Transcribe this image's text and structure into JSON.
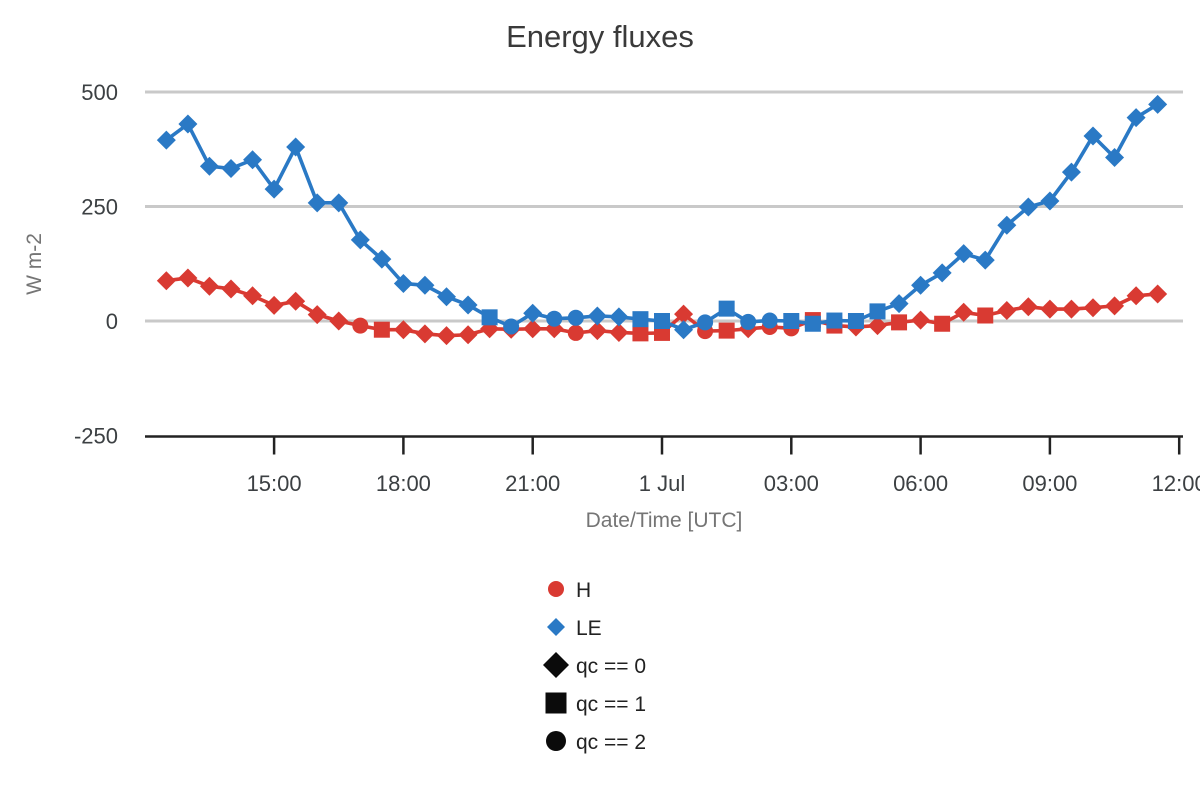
{
  "title": "Energy fluxes",
  "colors": {
    "h_series": "#d93a32",
    "le_series": "#2a79c5",
    "qc_legend": "#0b0b0b",
    "gridline": "#c9c9c9",
    "axis_line": "#222222",
    "tick_label": "#3c4043",
    "axis_title": "#757575",
    "title_text": "#3a3a3a",
    "legend_text": "#212121"
  },
  "y_axis": {
    "label": "W m-2",
    "ticks": [
      {
        "value": 500,
        "label": "500"
      },
      {
        "value": 250,
        "label": "250"
      },
      {
        "value": 0,
        "label": "0"
      },
      {
        "value": -250,
        "label": "-250"
      }
    ],
    "range": [
      -250,
      500
    ],
    "gridlines_at": [
      500,
      250,
      0
    ]
  },
  "x_axis": {
    "label": "Date/Time [UTC]",
    "ticks": [
      {
        "hour": 15,
        "label": "15:00"
      },
      {
        "hour": 18,
        "label": "18:00"
      },
      {
        "hour": 21,
        "label": "21:00"
      },
      {
        "hour": 24,
        "label": "1 Jul"
      },
      {
        "hour": 27,
        "label": "03:00"
      },
      {
        "hour": 30,
        "label": "06:00"
      },
      {
        "hour": 33,
        "label": "09:00"
      },
      {
        "hour": 36,
        "label": "12:00"
      }
    ]
  },
  "legend": [
    {
      "label": "H",
      "marker": "circle",
      "color": "#d93a32",
      "size": 8
    },
    {
      "label": "LE",
      "marker": "diamond",
      "color": "#2a79c5",
      "size": 9
    },
    {
      "label": "qc == 0",
      "marker": "diamond",
      "color": "#0b0b0b",
      "size": 13
    },
    {
      "label": "qc == 1",
      "marker": "square",
      "color": "#0b0b0b",
      "size": 10.5
    },
    {
      "label": "qc == 2",
      "marker": "circle",
      "color": "#0b0b0b",
      "size": 10
    }
  ],
  "chart_data": {
    "type": "line",
    "title": "Energy fluxes",
    "xlabel": "Date/Time [UTC]",
    "ylabel": "W m-2",
    "ylim": [
      -250,
      500
    ],
    "grid": "horizontal-only",
    "legend_position": "bottom-left-of-center",
    "x_unit": "hours since 30 Jun 00:00 UTC (24 = 1 Jul 00:00)",
    "x_start_hour": 12.5,
    "x_step_hours": 0.5,
    "times": [
      "12:30",
      "13:00",
      "13:30",
      "14:00",
      "14:30",
      "15:00",
      "15:30",
      "16:00",
      "16:30",
      "17:00",
      "17:30",
      "18:00",
      "18:30",
      "19:00",
      "19:30",
      "20:00",
      "20:30",
      "21:00",
      "21:30",
      "22:00",
      "22:30",
      "23:00",
      "23:30",
      "00:00",
      "00:30",
      "01:00",
      "01:30",
      "02:00",
      "02:30",
      "03:00",
      "03:30",
      "04:00",
      "04:30",
      "05:00",
      "05:30",
      "06:00",
      "06:30",
      "07:00",
      "07:30",
      "08:00",
      "08:30",
      "09:00",
      "09:30",
      "10:00",
      "10:30",
      "11:00",
      "11:30"
    ],
    "qc_marker_map": {
      "0": "diamond",
      "1": "square",
      "2": "circle"
    },
    "series": [
      {
        "name": "H",
        "color": "#d93a32",
        "values": [
          88,
          94,
          76,
          70,
          55,
          34,
          43,
          14,
          0,
          -10,
          -19,
          -19,
          -28,
          -32,
          -30,
          -17,
          -18,
          -17,
          -17,
          -26,
          -21,
          -25,
          -27,
          -26,
          15,
          -22,
          -21,
          -17,
          -13,
          -16,
          2,
          -10,
          -13,
          -10,
          -3,
          2,
          -6,
          19,
          12,
          23,
          31,
          26,
          26,
          29,
          33,
          55,
          59
        ],
        "qc": [
          0,
          0,
          0,
          0,
          0,
          0,
          0,
          0,
          0,
          2,
          1,
          0,
          0,
          0,
          0,
          0,
          0,
          0,
          0,
          2,
          0,
          0,
          1,
          1,
          0,
          2,
          1,
          0,
          2,
          2,
          1,
          1,
          0,
          0,
          1,
          0,
          1,
          0,
          1,
          0,
          0,
          0,
          0,
          0,
          0,
          0,
          0
        ]
      },
      {
        "name": "LE",
        "color": "#2a79c5",
        "values": [
          395,
          430,
          338,
          333,
          352,
          288,
          380,
          258,
          258,
          177,
          135,
          82,
          78,
          53,
          35,
          8,
          -12,
          17,
          5,
          7,
          11,
          9,
          4,
          0,
          -19,
          -3,
          27,
          -2,
          1,
          0,
          -6,
          1,
          0,
          21,
          38,
          78,
          105,
          147,
          133,
          209,
          249,
          262,
          325,
          404,
          357,
          444,
          473
        ],
        "qc": [
          0,
          0,
          0,
          0,
          0,
          0,
          0,
          0,
          0,
          0,
          0,
          0,
          0,
          0,
          0,
          1,
          2,
          0,
          2,
          2,
          0,
          0,
          1,
          1,
          0,
          2,
          1,
          2,
          2,
          1,
          1,
          1,
          1,
          1,
          0,
          0,
          0,
          0,
          0,
          0,
          0,
          0,
          0,
          0,
          0,
          0,
          0
        ]
      }
    ]
  }
}
